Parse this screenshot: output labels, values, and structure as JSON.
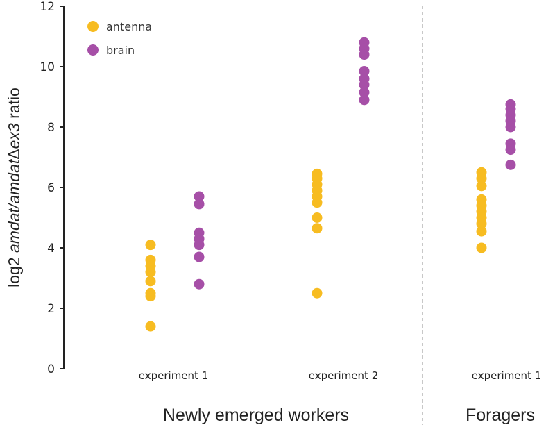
{
  "chart_data": {
    "type": "scatter",
    "title": "",
    "ylabel": {
      "prefix": "log2 ",
      "italic": "amdat/amdat",
      "delta": "Δ",
      "italic2": "ex3",
      "suffix": " ratio",
      "full": "log2 amdat/amdatΔex3 ratio"
    },
    "xlabel": "",
    "ylim": [
      0,
      12
    ],
    "yticks": [
      0,
      2,
      4,
      6,
      8,
      10,
      12
    ],
    "grid": false,
    "legend_position": "top-left",
    "legend": [
      {
        "name": "antenna",
        "color": "#F7BC21"
      },
      {
        "name": "brain",
        "color": "#A64FA7"
      }
    ],
    "groups": [
      {
        "label": "Newly emerged workers",
        "categories": [
          "experiment 1",
          "experiment 2"
        ]
      },
      {
        "label": "Foragers",
        "categories": [
          "experiment 1"
        ]
      }
    ],
    "categories": [
      {
        "label": "experiment 1",
        "group": "Newly emerged workers"
      },
      {
        "label": "experiment 2",
        "group": "Newly emerged workers"
      },
      {
        "label": "experiment 1",
        "group": "Foragers"
      }
    ],
    "series": [
      {
        "name": "antenna",
        "color": "#F7BC21",
        "values": [
          [
            4.1,
            3.6,
            3.4,
            3.2,
            2.9,
            2.5,
            2.4,
            1.4
          ],
          [
            6.45,
            6.3,
            6.1,
            5.9,
            5.7,
            5.5,
            5.0,
            4.65,
            2.5
          ],
          [
            6.5,
            6.3,
            6.05,
            5.6,
            5.4,
            5.2,
            5.0,
            4.8,
            4.55,
            4.0
          ]
        ]
      },
      {
        "name": "brain",
        "color": "#A64FA7",
        "values": [
          [
            5.7,
            5.45,
            4.5,
            4.3,
            4.1,
            3.7,
            2.8
          ],
          [
            10.8,
            10.6,
            10.4,
            9.85,
            9.6,
            9.4,
            9.15,
            8.9
          ],
          [
            8.75,
            8.6,
            8.4,
            8.2,
            8.0,
            7.45,
            7.25,
            6.75
          ]
        ]
      }
    ]
  }
}
